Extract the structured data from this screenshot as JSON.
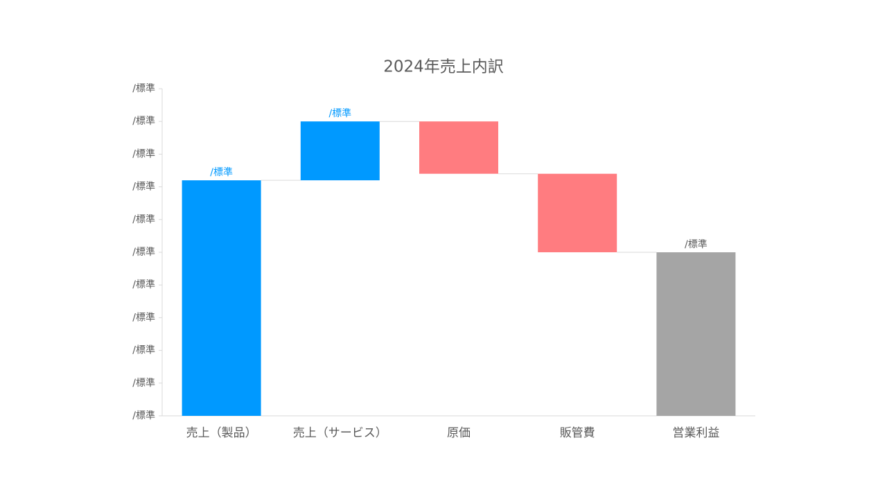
{
  "chart_data": {
    "type": "waterfall",
    "title": "2024年売上内訳",
    "categories": [
      "売上（製品）",
      "売上（サービス）",
      "原価",
      "販管費",
      "営業利益"
    ],
    "values": [
      72,
      18,
      -16,
      -24,
      50
    ],
    "value_labels": [
      "/標準",
      "/標準",
      null,
      null,
      "/標準"
    ],
    "measures": [
      "relative",
      "relative",
      "relative",
      "relative",
      "total"
    ],
    "colors": {
      "increase": "#0099ff",
      "decrease": "#ff7c80",
      "total": "#a5a5a5"
    },
    "ylim": [
      0,
      100
    ],
    "yticks": [
      {
        "value": 0,
        "label": "/標準"
      },
      {
        "value": 10,
        "label": "/標準"
      },
      {
        "value": 20,
        "label": "/標準"
      },
      {
        "value": 30,
        "label": "/標準"
      },
      {
        "value": 40,
        "label": "/標準"
      },
      {
        "value": 50,
        "label": "/標準"
      },
      {
        "value": 60,
        "label": "/標準"
      },
      {
        "value": 70,
        "label": "/標準"
      },
      {
        "value": 80,
        "label": "/標準"
      },
      {
        "value": 90,
        "label": "/標準"
      },
      {
        "value": 100,
        "label": "/標準"
      }
    ]
  }
}
